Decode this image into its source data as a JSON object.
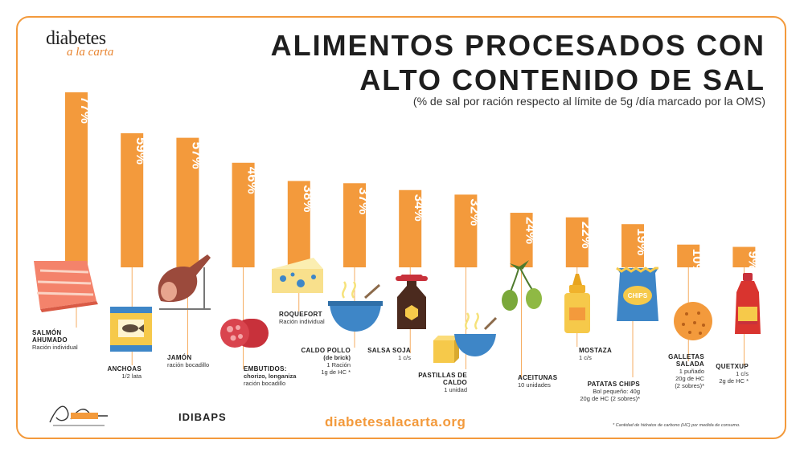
{
  "logo": {
    "main": "diabetes",
    "sub": "a la carta"
  },
  "header": {
    "title_line1": "ALIMENTOS PROCESADOS CON",
    "title_line2": "ALTO CONTENIDO DE SAL",
    "subtitle": "(% de sal por ración respecto al límite de 5g /día marcado por la OMS)"
  },
  "chart_data": {
    "type": "bar",
    "categories": [
      "SALMÓN AHUMADO",
      "ANCHOAS",
      "JAMÓN",
      "EMBUTIDOS:",
      "ROQUEFORT",
      "CALDO POLLO (de brick)",
      "SALSA SOJA",
      "PASTILLAS DE CALDO",
      "ACEITUNAS",
      "MOSTAZA",
      "PATATAS CHIPS",
      "GALLETAS SALADA",
      "QUETXUP"
    ],
    "values": [
      77,
      59,
      57,
      46,
      38,
      37,
      34,
      32,
      24,
      22,
      19,
      10,
      9
    ],
    "value_labels": [
      "77%",
      "59%",
      "57%",
      "46%",
      "38%",
      "37%",
      "34%",
      "32%",
      "24%",
      "22%",
      "19%",
      "10%",
      "9%"
    ],
    "unit": "%",
    "ylim": [
      0,
      77
    ],
    "bar_color": "#f39a3c",
    "icons": [
      "salmon-icon",
      "tin-can-icon",
      "ham-leg-icon",
      "sausage-icon",
      "cheese-icon",
      "soup-bowl-icon",
      "soy-sauce-bottle-icon",
      "stock-cube-icon",
      "olives-icon",
      "mustard-bottle-icon",
      "chips-bag-icon",
      "crackers-icon",
      "ketchup-bottle-icon"
    ]
  },
  "items": [
    {
      "name": "SALMÓN AHUMADO",
      "desc": [
        "Ración individual"
      ]
    },
    {
      "name": "ANCHOAS",
      "desc": [
        "1/2 lata"
      ]
    },
    {
      "name": "JAMÓN",
      "desc": [
        "ración bocadillo"
      ]
    },
    {
      "name": "EMBUTIDOS:",
      "sub": "chorizo, longaniza",
      "desc": [
        "ración bocadillo"
      ]
    },
    {
      "name": "ROQUEFORT",
      "desc": [
        "Ración individual"
      ]
    },
    {
      "name": "CALDO POLLO",
      "sub": "(de brick)",
      "desc": [
        "1 Ración",
        "1g de HC *"
      ]
    },
    {
      "name": "SALSA SOJA",
      "desc": [
        "1 c/s"
      ]
    },
    {
      "name": "PASTILLAS DE CALDO",
      "desc": [
        "1 unidad"
      ]
    },
    {
      "name": "ACEITUNAS",
      "desc": [
        "10 unidades"
      ]
    },
    {
      "name": "MOSTAZA",
      "desc": [
        "1 c/s"
      ]
    },
    {
      "name": "PATATAS CHIPS",
      "desc": [
        "Bol pequeño: 40g",
        "20g de HC (2 sobres)*"
      ]
    },
    {
      "name": "GALLETAS SALADA",
      "desc": [
        "1 puñado",
        "20g de HC",
        "(2 sobres)*"
      ]
    },
    {
      "name": "QUETXUP",
      "desc": [
        "1 c/s",
        "2g de HC *"
      ]
    }
  ],
  "chips_label": "CHIPS",
  "footer": {
    "footnote": "* Cantidad de hidratos de carbono (HC) por medida de consumo.",
    "website": "diabetesalacarta.org",
    "partner": "IDIBAPS"
  }
}
